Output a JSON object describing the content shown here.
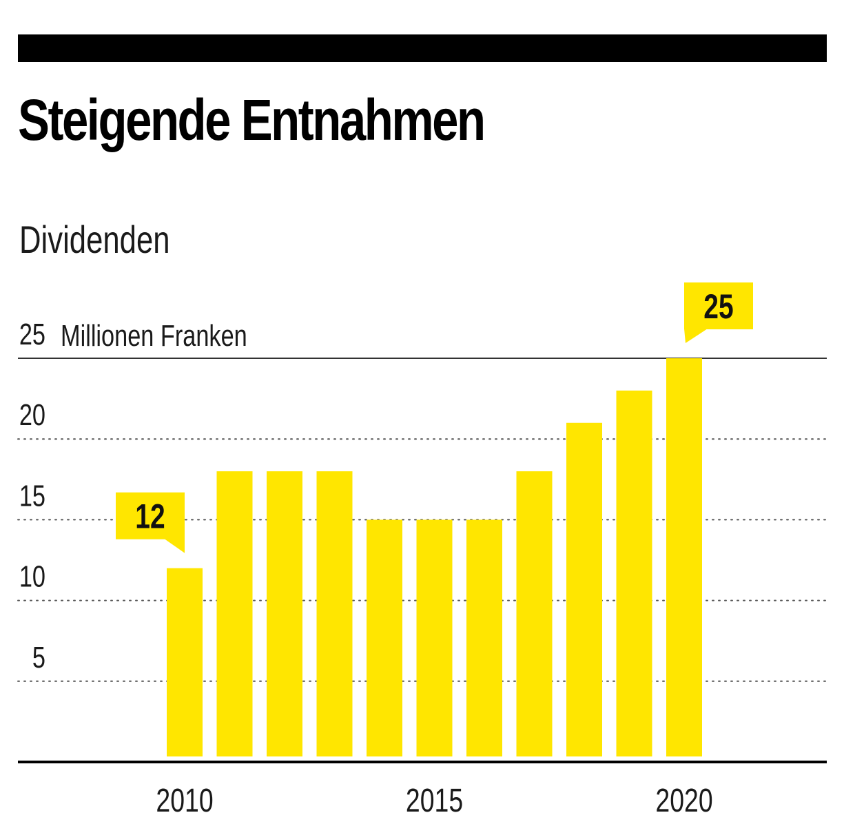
{
  "title": "Steigende Entnahmen",
  "subtitle": "Dividenden",
  "colors": {
    "bar": "#FFE600",
    "callout": "#FFE600",
    "rule": "#000000",
    "grid": "#555555"
  },
  "chart_data": {
    "type": "bar",
    "title": "Steigende Entnahmen",
    "subtitle": "Dividenden",
    "ylabel": "Millionen Franken",
    "xlabel": "",
    "ylim": [
      0,
      25
    ],
    "yticks": [
      5,
      10,
      15,
      20,
      25
    ],
    "grid": true,
    "categories": [
      "2010",
      "2011",
      "2012",
      "2013",
      "2014",
      "2015",
      "2016",
      "2017",
      "2018",
      "2019",
      "2020"
    ],
    "x_tick_labels": [
      "2010",
      "2015",
      "2020"
    ],
    "values": [
      12,
      18,
      18,
      18,
      15,
      15,
      15,
      18,
      21,
      23,
      25
    ],
    "annotations": [
      {
        "category": "2010",
        "label": "12"
      },
      {
        "category": "2020",
        "label": "25"
      }
    ]
  }
}
